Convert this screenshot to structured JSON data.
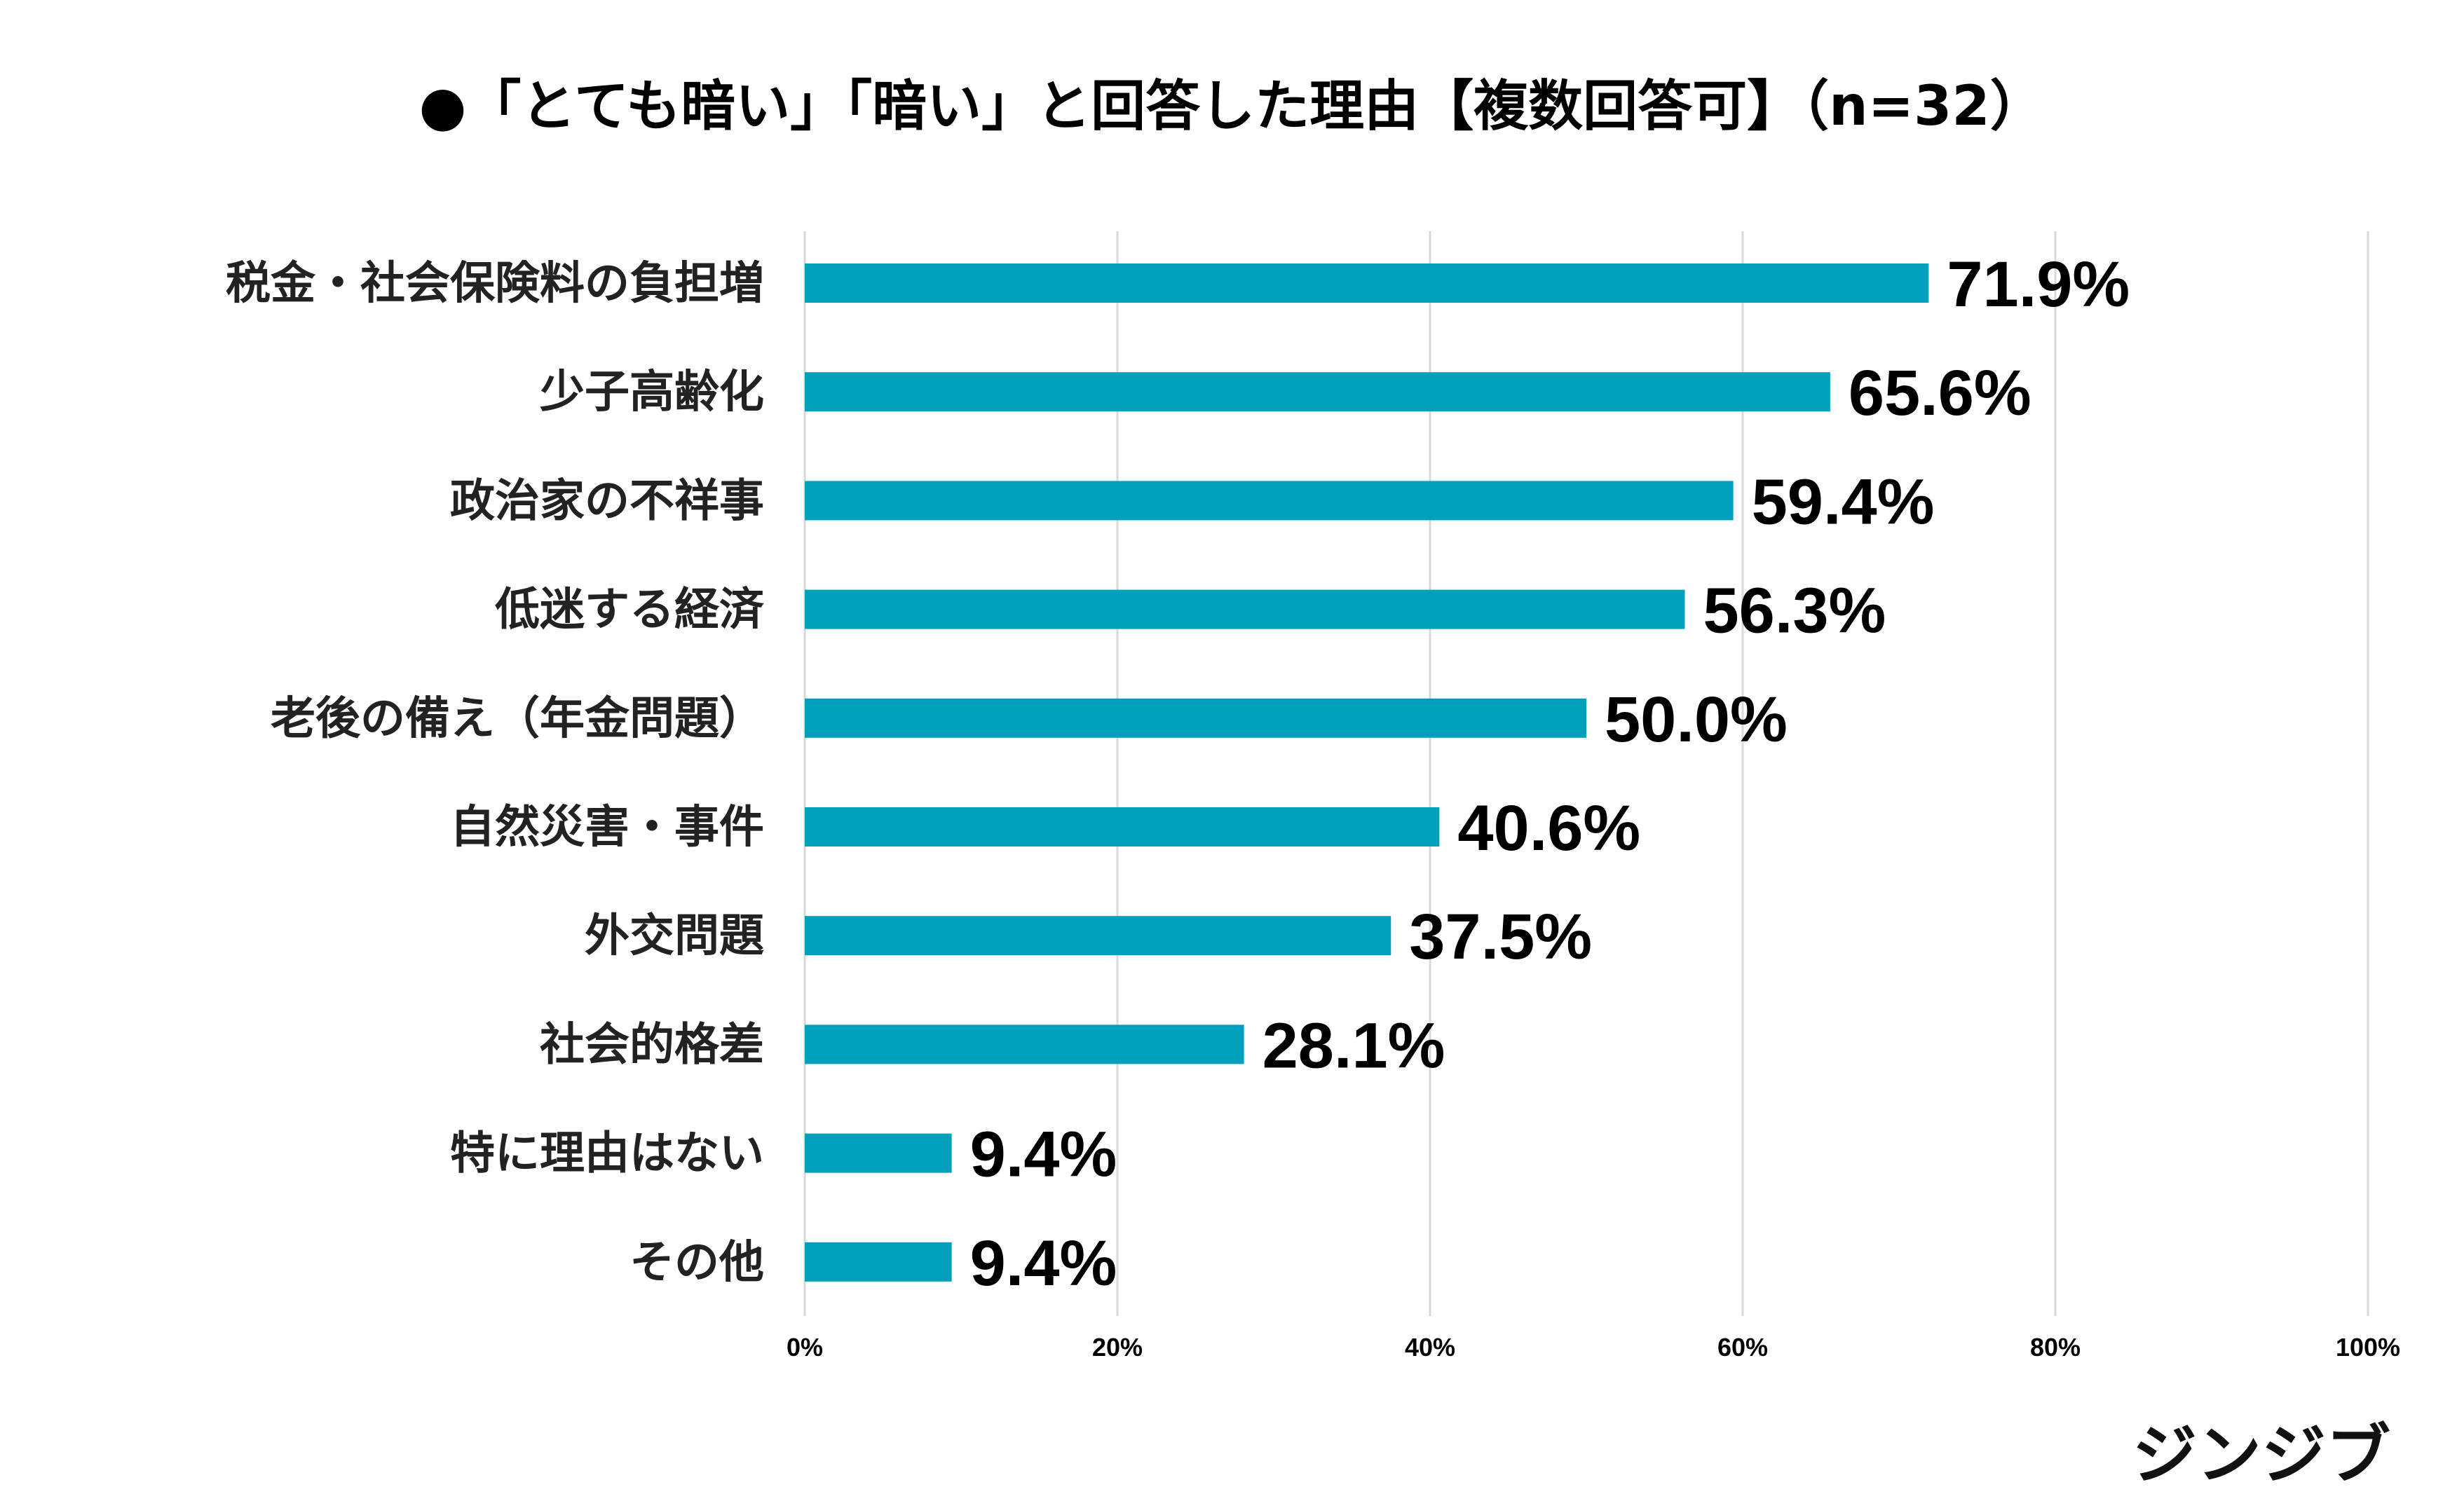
{
  "chart_data": {
    "type": "bar",
    "orientation": "horizontal",
    "title": "●「とても暗い」「暗い」と回答した理由【複数回答可】（n=32）",
    "categories": [
      "税金・社会保険料の負担増",
      "少子高齢化",
      "政治家の不祥事",
      "低迷する経済",
      "老後の備え（年金問題）",
      "自然災害・事件",
      "外交問題",
      "社会的格差",
      "特に理由はない",
      "その他"
    ],
    "values": [
      71.9,
      65.6,
      59.4,
      56.3,
      50.0,
      40.6,
      37.5,
      28.1,
      9.4,
      9.4
    ],
    "value_labels": [
      "71.9%",
      "65.6%",
      "59.4%",
      "56.3%",
      "50.0%",
      "40.6%",
      "37.5%",
      "28.1%",
      "9.4%",
      "9.4%"
    ],
    "xlim": [
      0,
      100
    ],
    "x_ticks": [
      0,
      20,
      40,
      60,
      80,
      100
    ],
    "x_tick_labels": [
      "0%",
      "20%",
      "40%",
      "60%",
      "80%",
      "100%"
    ],
    "xlabel": "",
    "ylabel": "",
    "grid": true,
    "bar_color": "#00a0bd",
    "gridline_color": "#d9d9d9"
  },
  "brand": {
    "logo_text": "ジンジブ"
  }
}
